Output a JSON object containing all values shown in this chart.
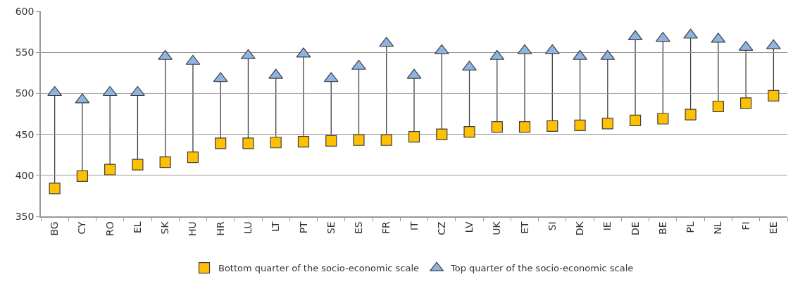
{
  "chart_data": {
    "type": "scatter",
    "categories": [
      "BG",
      "CY",
      "RO",
      "EL",
      "SK",
      "HU",
      "HR",
      "LU",
      "LT",
      "PT",
      "SE",
      "ES",
      "FR",
      "IT",
      "CZ",
      "LV",
      "UK",
      "ET",
      "SI",
      "DK",
      "IE",
      "DE",
      "BE",
      "PL",
      "NL",
      "FI",
      "EE"
    ],
    "series": [
      {
        "name": "Bottom quarter of the socio-economic scale",
        "color": "#ffc000",
        "marker": "square",
        "values": [
          384,
          399,
          407,
          413,
          416,
          422,
          439,
          439,
          440,
          441,
          442,
          443,
          443,
          447,
          450,
          453,
          459,
          459,
          460,
          461,
          463,
          467,
          469,
          474,
          484,
          488,
          497
        ]
      },
      {
        "name": "Top quarter of the socio-economic scale",
        "color": "#8eb4e3",
        "marker": "triangle",
        "values": [
          501,
          492,
          501,
          501,
          545,
          539,
          518,
          546,
          522,
          548,
          518,
          533,
          561,
          522,
          552,
          532,
          545,
          552,
          552,
          545,
          545,
          569,
          567,
          571,
          566,
          556,
          558
        ]
      }
    ],
    "ylim": [
      350,
      600
    ],
    "yticks": [
      350,
      400,
      450,
      500,
      550,
      600
    ],
    "grid": "y",
    "legend": "bottom"
  }
}
